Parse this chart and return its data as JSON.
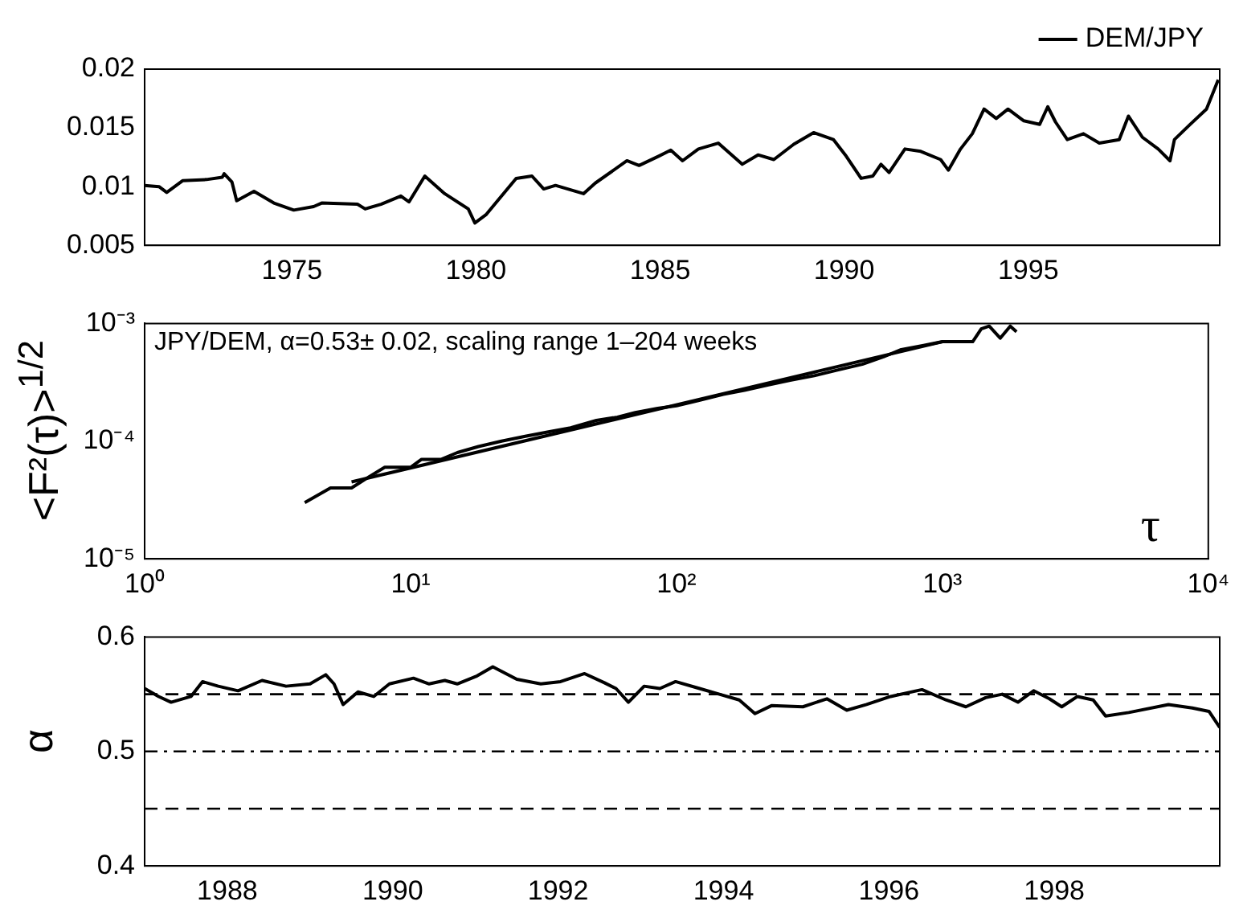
{
  "chart_data": [
    {
      "type": "line",
      "legend": "top right",
      "xlim": [
        1971,
        2000.2
      ],
      "ylim": [
        0.005,
        0.02
      ],
      "xticks": [
        1975,
        1980,
        1985,
        1990,
        1995
      ],
      "yticks": [
        0.005,
        0.01,
        0.015,
        0.02
      ],
      "series": [
        {
          "name": "DEM/JPY",
          "color": "#000000",
          "x": [
            1971.0,
            1971.39,
            1971.6,
            1972.03,
            1972.68,
            1973.11,
            1973.16,
            1973.37,
            1973.5,
            1973.97,
            1974.51,
            1975.05,
            1975.59,
            1975.81,
            1976.78,
            1976.99,
            1977.42,
            1977.96,
            1978.18,
            1978.61,
            1979.15,
            1979.79,
            1979.97,
            1980.27,
            1981.09,
            1981.52,
            1981.84,
            1982.16,
            1982.92,
            1983.24,
            1984.1,
            1984.43,
            1984.97,
            1985.29,
            1985.61,
            1986.04,
            1986.58,
            1987.23,
            1987.66,
            1988.09,
            1988.63,
            1989.17,
            1989.71,
            1990.03,
            1990.46,
            1990.78,
            1991.0,
            1991.22,
            1991.65,
            1992.08,
            1992.62,
            1992.83,
            1993.16,
            1993.48,
            1993.8,
            1994.13,
            1994.45,
            1994.88,
            1995.31,
            1995.53,
            1995.74,
            1996.06,
            1996.5,
            1996.93,
            1997.47,
            1997.72,
            1998.1,
            1998.53,
            1998.85,
            1998.97,
            1999.4,
            1999.84,
            2000.16
          ],
          "values": [
            0.0101,
            0.01,
            0.0095,
            0.0105,
            0.0106,
            0.0108,
            0.0111,
            0.0104,
            0.0088,
            0.0096,
            0.0086,
            0.008,
            0.0083,
            0.0086,
            0.0085,
            0.0081,
            0.0085,
            0.0092,
            0.0087,
            0.0109,
            0.0094,
            0.0081,
            0.0069,
            0.0076,
            0.0107,
            0.0109,
            0.0098,
            0.0101,
            0.0094,
            0.0103,
            0.0122,
            0.0118,
            0.0126,
            0.0131,
            0.0122,
            0.0132,
            0.0137,
            0.0119,
            0.0127,
            0.0123,
            0.0136,
            0.0146,
            0.014,
            0.0127,
            0.0107,
            0.0109,
            0.0119,
            0.0112,
            0.0132,
            0.013,
            0.0123,
            0.0114,
            0.0132,
            0.0145,
            0.0166,
            0.0158,
            0.0166,
            0.0156,
            0.0153,
            0.0168,
            0.0155,
            0.014,
            0.0145,
            0.0137,
            0.014,
            0.016,
            0.0142,
            0.0132,
            0.0122,
            0.014,
            0.0153,
            0.0166,
            0.0191
          ]
        }
      ]
    },
    {
      "type": "line",
      "log": "xy",
      "xlabel": "τ",
      "ylabel": "<F²(τ)>$^{1/2}$",
      "annotations": [
        "JPY/DEM, α=0.53± 0.02, scaling range 1–204 weeks"
      ],
      "xlim": [
        1,
        10000
      ],
      "ylim": [
        1e-05,
        0.001
      ],
      "xticks": [
        {
          "value": 1,
          "label": "10⁰"
        },
        {
          "value": 10,
          "label": "10¹"
        },
        {
          "value": 100,
          "label": "10²"
        },
        {
          "value": 1000,
          "label": "10³"
        },
        {
          "value": 10000,
          "label": "10⁴"
        }
      ],
      "yticks": [
        {
          "value": 1e-05,
          "label": "10⁻⁵"
        },
        {
          "value": 0.0001,
          "label": "10⁻⁴"
        },
        {
          "value": 0.001,
          "label": "10⁻³"
        }
      ],
      "series": [
        {
          "color": "#000000",
          "x": [
            4,
            5,
            6,
            7,
            8,
            10,
            11,
            13,
            15,
            18,
            22,
            27,
            33,
            40,
            50,
            60,
            70,
            85,
            100,
            120,
            150,
            180,
            220,
            270,
            330,
            400,
            500,
            600,
            700,
            850,
            1000,
            1300,
            1400,
            1500,
            1650,
            1800,
            1900
          ],
          "values": [
            3e-05,
            4e-05,
            4e-05,
            5e-05,
            6e-05,
            6e-05,
            7e-05,
            7e-05,
            8e-05,
            9e-05,
            0.0001,
            0.00011,
            0.00012,
            0.00013,
            0.00015,
            0.00016,
            0.000175,
            0.00019,
            0.0002,
            0.00022,
            0.00025,
            0.00027,
            0.0003,
            0.00033,
            0.00036,
            0.0004,
            0.00045,
            0.00052,
            0.0006,
            0.00065,
            0.0007,
            0.0007,
            0.0009,
            0.00095,
            0.00075,
            0.00095,
            0.00085
          ]
        },
        {
          "type": "line",
          "color": "#000000",
          "x": [
            6,
            1000
          ],
          "values": [
            4.5e-05,
            0.0007
          ]
        }
      ]
    },
    {
      "type": "line",
      "ylabel": "α",
      "xlim": [
        1987,
        2000
      ],
      "ylim": [
        0.4,
        0.6
      ],
      "xticks": [
        1988,
        1990,
        1992,
        1994,
        1996,
        1998
      ],
      "yticks": [
        0.4,
        0.5,
        0.6
      ],
      "ref_lines": [
        {
          "axis": "y",
          "value": 0.55,
          "line_style": "dashed"
        },
        {
          "axis": "y",
          "value": 0.5,
          "line_style": "dashdot"
        },
        {
          "axis": "y",
          "value": 0.45,
          "line_style": "dashed"
        }
      ],
      "series": [
        {
          "color": "#000000",
          "x": [
            1987.0,
            1987.17,
            1987.32,
            1987.56,
            1987.7,
            1987.89,
            1988.13,
            1988.42,
            1988.71,
            1989.0,
            1989.19,
            1989.29,
            1989.4,
            1989.58,
            1989.77,
            1989.96,
            1990.25,
            1990.44,
            1990.63,
            1990.78,
            1991.02,
            1991.21,
            1991.5,
            1991.79,
            1992.03,
            1992.32,
            1992.56,
            1992.7,
            1992.85,
            1993.04,
            1993.23,
            1993.42,
            1993.71,
            1993.95,
            1994.19,
            1994.38,
            1994.58,
            1994.96,
            1995.25,
            1995.49,
            1995.73,
            1996.02,
            1996.4,
            1996.69,
            1996.93,
            1997.17,
            1997.37,
            1997.56,
            1997.75,
            1997.94,
            1998.09,
            1998.28,
            1998.47,
            1998.62,
            1998.9,
            1999.38,
            1999.67,
            1999.87,
            2000.0
          ],
          "values": [
            0.555,
            0.548,
            0.543,
            0.548,
            0.561,
            0.557,
            0.553,
            0.562,
            0.557,
            0.559,
            0.567,
            0.559,
            0.541,
            0.552,
            0.548,
            0.559,
            0.564,
            0.559,
            0.562,
            0.559,
            0.566,
            0.574,
            0.563,
            0.559,
            0.561,
            0.568,
            0.56,
            0.555,
            0.543,
            0.557,
            0.555,
            0.561,
            0.555,
            0.55,
            0.545,
            0.533,
            0.54,
            0.539,
            0.546,
            0.536,
            0.541,
            0.548,
            0.554,
            0.545,
            0.539,
            0.547,
            0.55,
            0.543,
            0.553,
            0.546,
            0.539,
            0.548,
            0.545,
            0.531,
            0.534,
            0.541,
            0.538,
            0.535,
            0.521
          ]
        }
      ]
    }
  ]
}
